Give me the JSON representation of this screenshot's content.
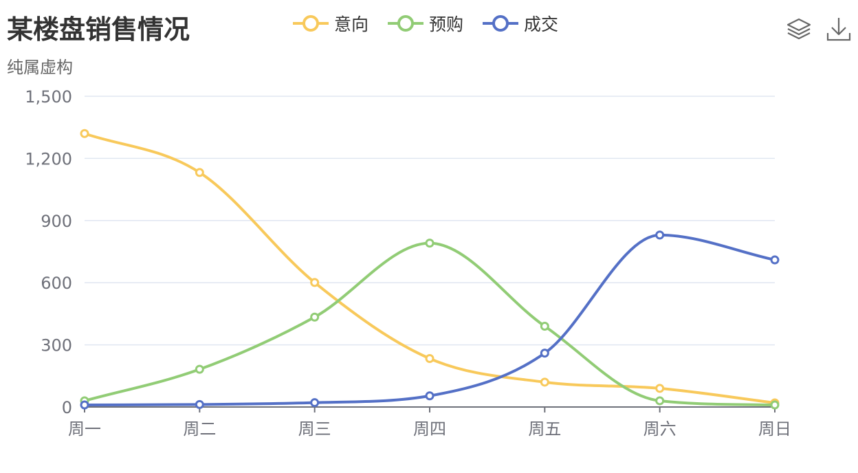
{
  "header": {
    "title": "某楼盘销售情况",
    "subtitle": "纯属虚构"
  },
  "toolbox": {
    "items": [
      {
        "icon": "stack-layers-icon"
      },
      {
        "icon": "download-icon"
      }
    ]
  },
  "colors": {
    "series": [
      "#f8c95b",
      "#91cc75",
      "#5470c6"
    ],
    "axis": "#6e7079",
    "grid": "#e0e6f1"
  },
  "chart_data": {
    "type": "line",
    "smooth": true,
    "title": "某楼盘销售情况",
    "subtitle": "纯属虚构",
    "categories": [
      "周一",
      "周二",
      "周三",
      "周四",
      "周五",
      "周六",
      "周日"
    ],
    "ylim": [
      0,
      1500
    ],
    "yticks": [
      "0",
      "300",
      "600",
      "900",
      "1,200",
      "1,500"
    ],
    "ytick_values": [
      0,
      300,
      600,
      900,
      1200,
      1500
    ],
    "grid": true,
    "legend_position": "top",
    "series": [
      {
        "name": "意向",
        "values": [
          1320,
          1132,
          601,
          234,
          120,
          90,
          20
        ]
      },
      {
        "name": "预购",
        "values": [
          30,
          182,
          434,
          791,
          390,
          30,
          10
        ]
      },
      {
        "name": "成交",
        "values": [
          10,
          12,
          21,
          54,
          260,
          830,
          710
        ]
      }
    ]
  }
}
